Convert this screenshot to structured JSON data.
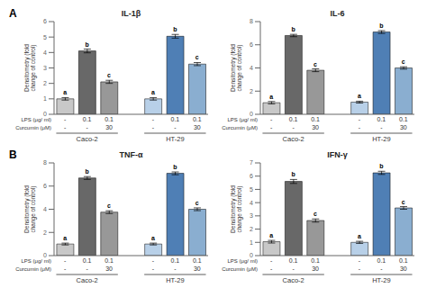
{
  "chart_data": [
    {
      "type": "bar",
      "title": "IL-1β",
      "annotation": "A",
      "ylabel": "Densitometry (fold\nchange of control)",
      "ylim": [
        0,
        6.0
      ],
      "yticks": [
        0,
        1,
        2,
        3,
        4,
        5,
        6
      ],
      "x_rows": [
        {
          "label": "LPS (μg/ ml)",
          "texts": [
            "-",
            "0.1",
            "0.1",
            "-",
            "0.1",
            "0.1"
          ]
        },
        {
          "label": "Curcumin (μM)",
          "texts": [
            "-",
            "-",
            "30",
            "-",
            "-",
            "30"
          ]
        }
      ],
      "groups": [
        {
          "name": "Caco-2",
          "values": [
            1.0,
            4.1,
            2.1
          ],
          "errors": [
            0.08,
            0.12,
            0.1
          ],
          "letters": [
            "a",
            "b",
            "c"
          ],
          "colors": [
            "#c8c8c8",
            "#686868",
            "#989898"
          ]
        },
        {
          "name": "HT-29",
          "values": [
            1.0,
            5.05,
            3.25
          ],
          "errors": [
            0.08,
            0.12,
            0.1
          ],
          "letters": [
            "a",
            "b",
            "c"
          ],
          "colors": [
            "#b8d0e8",
            "#4f7fb5",
            "#8aaed0"
          ]
        }
      ]
    },
    {
      "type": "bar",
      "title": "IL-6",
      "ylabel": "Densitometry (fold\nchange of control)",
      "ylim": [
        0,
        8.0
      ],
      "yticks": [
        0,
        1,
        2,
        3,
        4,
        5,
        6,
        7,
        8
      ],
      "x_rows": [
        {
          "label": "LPS (μg/ ml)",
          "texts": [
            "-",
            "0.1",
            "0.1",
            "-",
            "0.1",
            "0.1"
          ]
        },
        {
          "label": "Curcumin (μM)",
          "texts": [
            "-",
            "-",
            "30",
            "-",
            "-",
            "30"
          ]
        }
      ],
      "groups": [
        {
          "name": "Caco-2",
          "values": [
            1.0,
            6.8,
            3.8
          ],
          "errors": [
            0.1,
            0.1,
            0.12
          ],
          "letters": [
            "a",
            "b",
            "c"
          ],
          "colors": [
            "#c8c8c8",
            "#686868",
            "#989898"
          ]
        },
        {
          "name": "HT-29",
          "values": [
            1.05,
            7.1,
            4.0
          ],
          "errors": [
            0.08,
            0.12,
            0.1
          ],
          "letters": [
            "a",
            "b",
            "c"
          ],
          "colors": [
            "#b8d0e8",
            "#4f7fb5",
            "#8aaed0"
          ]
        }
      ]
    },
    {
      "type": "bar",
      "title": "TNF-α",
      "annotation": "B",
      "ylabel": "Densitometry (fold\nchange of control)",
      "ylim": [
        0,
        8.0
      ],
      "yticks": [
        0,
        1,
        2,
        3,
        4,
        5,
        6,
        7,
        8
      ],
      "x_rows": [
        {
          "label": "LPS (μg/ ml)",
          "texts": [
            "-",
            "0.1",
            "0.1",
            "-",
            "0.1",
            "0.1"
          ]
        },
        {
          "label": "Curcumin (μM)",
          "texts": [
            "-",
            "-",
            "30",
            "-",
            "-",
            "30"
          ]
        }
      ],
      "groups": [
        {
          "name": "Caco-2",
          "values": [
            1.0,
            6.7,
            3.75
          ],
          "errors": [
            0.08,
            0.12,
            0.12
          ],
          "letters": [
            "a",
            "b",
            "c"
          ],
          "colors": [
            "#c8c8c8",
            "#686868",
            "#989898"
          ]
        },
        {
          "name": "HT-29",
          "values": [
            1.0,
            7.1,
            4.0
          ],
          "errors": [
            0.08,
            0.12,
            0.12
          ],
          "letters": [
            "a",
            "b",
            "c"
          ],
          "colors": [
            "#b8d0e8",
            "#4f7fb5",
            "#8aaed0"
          ]
        }
      ]
    },
    {
      "type": "bar",
      "title": "IFN-γ",
      "ylabel": "Densitometry (fold\nchange of control)",
      "ylim": [
        0,
        7.0
      ],
      "yticks": [
        0,
        1,
        2,
        3,
        4,
        5,
        6,
        7
      ],
      "x_rows": [
        {
          "label": "LPS (μg/ ml)",
          "texts": [
            "-",
            "0.1",
            "0.1",
            "-",
            "0.1",
            "0.1"
          ]
        },
        {
          "label": "Curcumin (μM)",
          "texts": [
            "-",
            "-",
            "30",
            "-",
            "-",
            "30"
          ]
        }
      ],
      "groups": [
        {
          "name": "Caco-2",
          "values": [
            1.05,
            5.6,
            2.65
          ],
          "errors": [
            0.1,
            0.15,
            0.12
          ],
          "letters": [
            "a",
            "b",
            "c"
          ],
          "colors": [
            "#c8c8c8",
            "#686868",
            "#989898"
          ]
        },
        {
          "name": "HT-29",
          "values": [
            1.0,
            6.25,
            3.6
          ],
          "errors": [
            0.08,
            0.12,
            0.1
          ],
          "letters": [
            "a",
            "b",
            "c"
          ],
          "colors": [
            "#b8d0e8",
            "#4f7fb5",
            "#8aaed0"
          ]
        }
      ]
    }
  ]
}
